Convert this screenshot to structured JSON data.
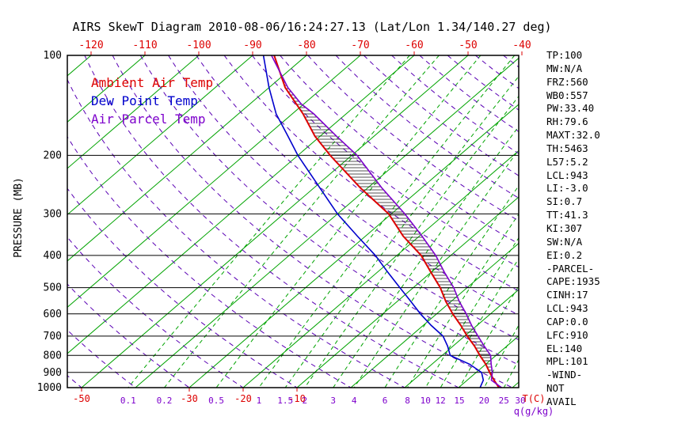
{
  "title": "AIRS SkewT Diagram 2010-08-06/16:24:27.13 (Lat/Lon 1.34/140.27 deg)",
  "colors": {
    "isotherm_green": "#00a300",
    "mixing_green": "#00a300",
    "adiabat_purple": "#5a00b4",
    "ambient_red": "#dd0000",
    "dewpoint_blue": "#0000cc",
    "parcel_purple": "#7d00cc",
    "label_purple": "#7d00cc",
    "hatch": "#1a1a1a",
    "axis_black": "#000000"
  },
  "legend": [
    {
      "label": "Ambient Air Temp",
      "color": "#dd0000"
    },
    {
      "label": "Dew Point Temp",
      "color": "#0000cc"
    },
    {
      "label": "Air Parcel Temp",
      "color": "#7d00cc"
    }
  ],
  "axes": {
    "pressure_label": "PRESSURE (MB)",
    "pressure_ticks": [
      100,
      200,
      300,
      400,
      500,
      600,
      700,
      800,
      900,
      1000
    ],
    "top_temp_ticks": [
      -120,
      -110,
      -100,
      -90,
      -80,
      -70,
      -60,
      -50,
      -40
    ],
    "bottom_temp_ticks": [
      -50,
      -30,
      -20,
      -10
    ],
    "bottom_temp_unit": "T(C)",
    "mixing_ratio_ticks": [
      0.1,
      0.2,
      0.5,
      1,
      1.5,
      2,
      3,
      4,
      6,
      8,
      10,
      12,
      15,
      20,
      25,
      30
    ],
    "mixing_ratio_unit": "q(g/kg)"
  },
  "stats": [
    "TP:100",
    "MW:N/A",
    "FRZ:560",
    "WB0:557",
    "PW:33.40",
    "RH:79.6",
    "MAXT:32.0",
    "TH:5463",
    "L57:5.2",
    "LCL:943",
    "LI:-3.0",
    "SI:0.7",
    "TT:41.3",
    "KI:307",
    "SW:N/A",
    "EI:0.2",
    "-PARCEL-",
    "CAPE:1935",
    "CINH:17",
    "LCL:943",
    "CAP:0.0",
    "LFC:910",
    "EL:140",
    "MPL:101",
    "-WIND-",
    "NOT",
    "AVAIL"
  ],
  "chart_data": {
    "type": "line",
    "title": "AIRS SkewT Diagram 2010-08-06/16:24:27.13 (Lat/Lon 1.34/140.27 deg)",
    "x_axis": {
      "label": "Temperature (C)",
      "top_row_range": [
        -120,
        -40
      ],
      "skewed": true
    },
    "y_axis": {
      "label": "PRESSURE (MB)",
      "scale": "log",
      "range": [
        100,
        1000
      ]
    },
    "series": [
      {
        "id": "ambient",
        "name": "Ambient Air Temp",
        "color": "#dd0000",
        "width": 2,
        "points": [
          [
            1000,
            27.5
          ],
          [
            950,
            25
          ],
          [
            900,
            22.5
          ],
          [
            850,
            20
          ],
          [
            800,
            17
          ],
          [
            750,
            14
          ],
          [
            700,
            10.5
          ],
          [
            650,
            7
          ],
          [
            600,
            3
          ],
          [
            550,
            -1
          ],
          [
            500,
            -5
          ],
          [
            450,
            -10
          ],
          [
            400,
            -15.5
          ],
          [
            350,
            -23
          ],
          [
            300,
            -30.5
          ],
          [
            250,
            -41.5
          ],
          [
            200,
            -54
          ],
          [
            175,
            -61
          ],
          [
            150,
            -68
          ],
          [
            125,
            -77
          ],
          [
            100,
            -86
          ]
        ]
      },
      {
        "id": "dewpoint",
        "name": "Dew Point Temp",
        "color": "#0000cc",
        "width": 1.6,
        "points": [
          [
            1000,
            24
          ],
          [
            950,
            23
          ],
          [
            900,
            21
          ],
          [
            850,
            17
          ],
          [
            800,
            11.5
          ],
          [
            750,
            9
          ],
          [
            700,
            6
          ],
          [
            650,
            1.5
          ],
          [
            600,
            -3
          ],
          [
            550,
            -7.5
          ],
          [
            500,
            -12.5
          ],
          [
            450,
            -18
          ],
          [
            400,
            -24
          ],
          [
            350,
            -31.5
          ],
          [
            300,
            -40
          ],
          [
            250,
            -49
          ],
          [
            200,
            -60
          ],
          [
            175,
            -66
          ],
          [
            150,
            -73
          ],
          [
            125,
            -80
          ],
          [
            100,
            -88
          ]
        ]
      },
      {
        "id": "parcel",
        "name": "Air Parcel Temp",
        "color": "#7d00cc",
        "width": 1.6,
        "points": [
          [
            1000,
            28
          ],
          [
            950,
            24.5
          ],
          [
            900,
            23
          ],
          [
            850,
            21
          ],
          [
            800,
            19
          ],
          [
            750,
            15.8
          ],
          [
            700,
            12.5
          ],
          [
            650,
            9
          ],
          [
            600,
            5.5
          ],
          [
            550,
            1.5
          ],
          [
            500,
            -2.5
          ],
          [
            450,
            -7.5
          ],
          [
            400,
            -12.8
          ],
          [
            350,
            -19.5
          ],
          [
            300,
            -27.5
          ],
          [
            250,
            -37.5
          ],
          [
            200,
            -49
          ],
          [
            175,
            -57
          ],
          [
            150,
            -66
          ],
          [
            140,
            -70.5
          ],
          [
            125,
            -76.5
          ],
          [
            100,
            -86.5
          ]
        ]
      }
    ],
    "background": {
      "isotherms_c": [
        -120,
        -110,
        -100,
        -90,
        -80,
        -70,
        -60,
        -50,
        -40,
        -30,
        -20,
        -10,
        0,
        10,
        20,
        30
      ],
      "dry_adiabats_theta_c": [
        -50,
        -40,
        -30,
        -20,
        -10,
        0,
        10,
        20,
        30,
        40,
        50,
        60,
        70,
        80,
        90,
        100,
        110,
        120,
        130,
        140,
        150,
        160,
        170,
        180
      ],
      "mixing_ratio_g_kg": [
        0.1,
        0.2,
        0.5,
        1,
        1.5,
        2,
        3,
        4,
        6,
        8,
        10,
        12,
        15,
        20,
        25,
        30
      ]
    },
    "hatch": {
      "between": [
        "ambient",
        "parcel"
      ],
      "p_range": [
        950,
        110
      ],
      "meaning": "CAPE area between ambient and parcel temperature"
    }
  }
}
